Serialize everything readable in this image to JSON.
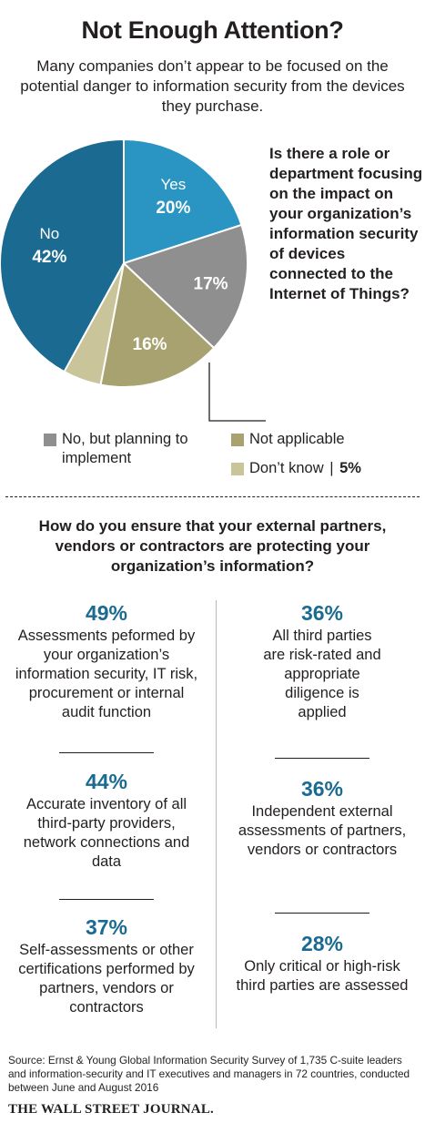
{
  "title": "Not Enough Attention?",
  "subtitle": "Many companies don’t appear to be focused on the potential danger to information security from the devices they purchase.",
  "question": "Is there a role or department focusing on the impact on your organization’s information security of devices connected to the Internet of Things?",
  "legend": {
    "planning": "No, but planning to implement",
    "not_applicable": "Not applicable",
    "dont_know": "Don’t know",
    "dont_know_sep": "|",
    "dont_know_value": "5%"
  },
  "colors": {
    "no": "#1a6a91",
    "yes": "#2a95c3",
    "planning": "#8f8f8f",
    "not_applicable": "#a8a271",
    "dont_know": "#c9c49a",
    "pct_text": "#1a6a91"
  },
  "question2": "How do you ensure that your external partners, vendors or contractors are protecting your organization’s information?",
  "stats": {
    "left": [
      {
        "value": "49%",
        "label": "Assessments peformed by your organization’s information security, IT risk, procurement or internal audit function"
      },
      {
        "value": "44%",
        "label": "Accurate inventory of all third-party providers, network connections and data"
      },
      {
        "value": "37%",
        "label": "Self-assessments or other certifications performed by partners, vendors or contractors"
      }
    ],
    "right": [
      {
        "value": "36%",
        "label": "All third parties are risk-rated and appropriate diligence is applied"
      },
      {
        "value": "36%",
        "label": "Independent external assessments of partners, vendors or contractors"
      },
      {
        "value": "28%",
        "label": "Only critical or high-risk third parties are assessed"
      }
    ]
  },
  "source": "Source: Ernst & Young Global Information Security Survey of 1,735 C-suite leaders and information-security and IT executives and managers in 72 countries, conducted between June and August 2016",
  "publisher": "THE WALL STREET JOURNAL.",
  "chart_data": {
    "type": "pie",
    "title": "Is there a role or department focusing on the impact on your organization’s information security of devices connected to the Internet of Things?",
    "categories": [
      "Yes",
      "No, but planning to implement",
      "Not applicable",
      "Don’t know",
      "No"
    ],
    "values": [
      20,
      17,
      16,
      5,
      42
    ],
    "slice_labels": [
      "Yes",
      "",
      "",
      "",
      "No"
    ],
    "value_labels": [
      "20%",
      "17%",
      "16%",
      "",
      "42%"
    ]
  }
}
